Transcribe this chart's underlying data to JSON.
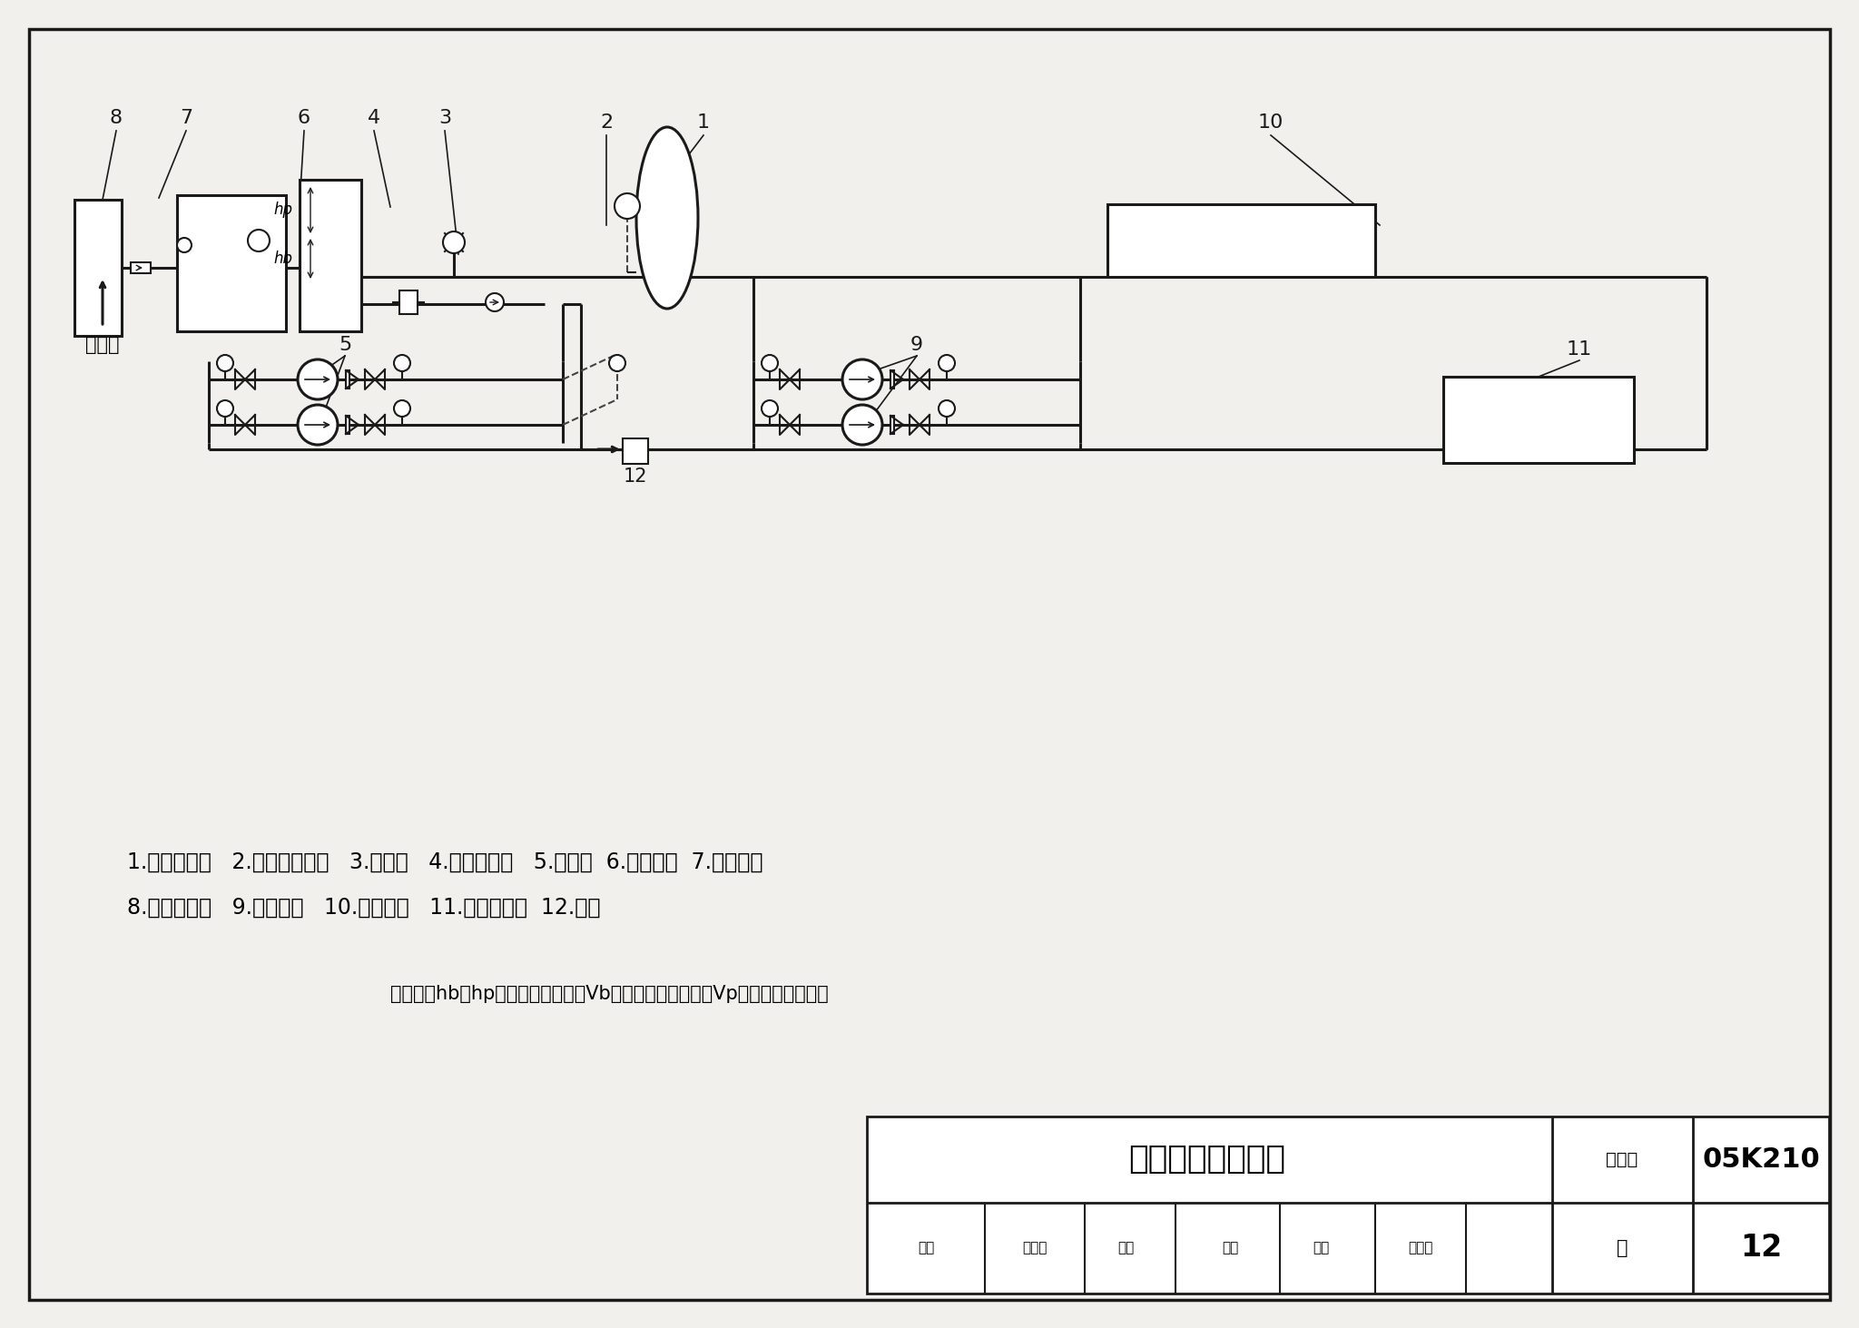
{
  "title_main": "气压罐定压原理图",
  "fig_no_label": "图集号",
  "fig_no_val": "05K210",
  "page_label": "页",
  "page_val": "12",
  "legend_line1": "1.囊式气压罐   2.电接点压力表   3.安全阀   4.泄水电磁阀   5.补水泵  6.软化水箱  7.软化设备",
  "legend_line2": "8.倒流防止器   9.循环水泵   10.末端用户   11.冷热源装置  12.水表",
  "note_text": "注：图中hb、hp分别为系统补水量Vb、系统最大膨胀水量Vp对应的水位高差。",
  "jieshui_label": "接给水",
  "bg_color": "#f2f0ec",
  "line_color": "#1a1a1a",
  "dash_color": "#444444",
  "white": "#ffffff",
  "label_nums_top": [
    "8",
    "7",
    "6",
    "4",
    "3",
    "2",
    "1",
    "10"
  ],
  "label_x_top": [
    128,
    205,
    335,
    412,
    490,
    668,
    775,
    1400
  ],
  "label_y_top": [
    130,
    130,
    130,
    130,
    130,
    135,
    135,
    135
  ],
  "label_x_end_top": [
    113,
    175,
    330,
    430,
    505,
    668,
    740,
    1520
  ],
  "label_y_end_top": [
    220,
    218,
    225,
    228,
    280,
    248,
    195,
    248
  ]
}
